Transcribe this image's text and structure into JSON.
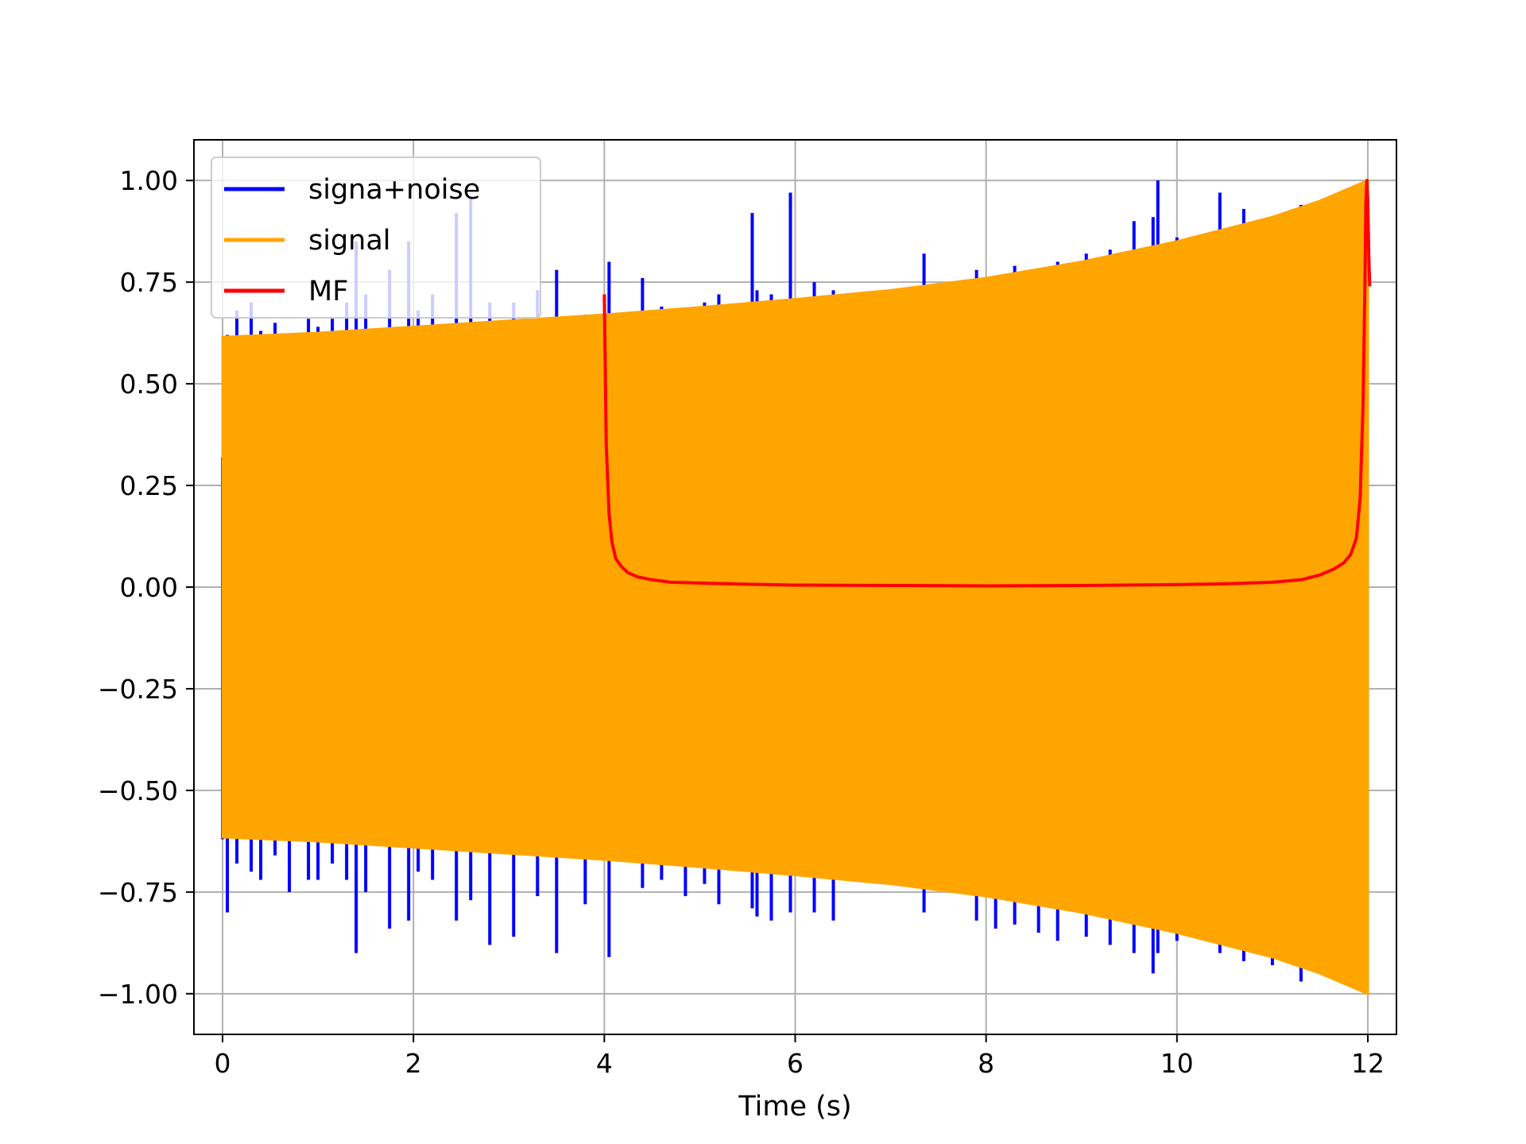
{
  "chart_data": {
    "type": "line",
    "title": "",
    "xlabel": "Time (s)",
    "ylabel": "",
    "xlim": [
      -0.3,
      12.3
    ],
    "ylim": [
      -1.1,
      1.1
    ],
    "grid": true,
    "legend_position": "top-left",
    "x_ticks": [
      0,
      2,
      4,
      6,
      8,
      10,
      12
    ],
    "x_tick_labels": [
      "0",
      "2",
      "4",
      "6",
      "8",
      "10",
      "12"
    ],
    "y_ticks": [
      1.0,
      0.75,
      0.5,
      0.25,
      0.0,
      -0.25,
      -0.5,
      -0.75,
      -1.0
    ],
    "y_tick_labels": [
      "1.00",
      "0.75",
      "0.50",
      "0.25",
      "0.00",
      "−0.25",
      "−0.50",
      "−0.75",
      "−1.00"
    ],
    "series": [
      {
        "name": "signa+noise",
        "color": "#0000ff",
        "type": "spikes",
        "x": [
          0.0,
          0.05,
          0.15,
          0.3,
          0.4,
          0.55,
          0.7,
          0.9,
          1.0,
          1.15,
          1.3,
          1.4,
          1.5,
          1.75,
          1.95,
          2.05,
          2.2,
          2.45,
          2.6,
          2.8,
          3.05,
          3.3,
          3.5,
          3.8,
          4.05,
          4.4,
          4.6,
          4.85,
          5.05,
          5.2,
          5.55,
          5.6,
          5.75,
          5.95,
          6.2,
          6.4,
          7.35,
          7.9,
          8.1,
          8.3,
          8.55,
          8.75,
          9.05,
          9.3,
          9.55,
          9.75,
          9.8,
          10.0,
          10.45,
          10.7,
          11.0,
          11.3,
          11.6,
          11.9
        ],
        "y": [
          0.32,
          0.62,
          0.68,
          0.7,
          0.63,
          0.65,
          0.6,
          0.66,
          0.64,
          0.66,
          0.7,
          0.85,
          0.72,
          0.78,
          0.85,
          0.68,
          0.72,
          0.92,
          0.96,
          0.7,
          0.7,
          0.73,
          0.78,
          0.67,
          0.8,
          0.76,
          0.69,
          0.68,
          0.7,
          0.72,
          0.92,
          0.73,
          0.72,
          0.97,
          0.75,
          0.73,
          0.82,
          0.78,
          0.76,
          0.79,
          0.78,
          0.8,
          0.82,
          0.83,
          0.9,
          0.91,
          1.0,
          0.86,
          0.97,
          0.93,
          0.91,
          0.94,
          0.95,
          0.98
        ],
        "y_low": [
          -0.62,
          -0.8,
          -0.68,
          -0.7,
          -0.72,
          -0.66,
          -0.75,
          -0.72,
          -0.72,
          -0.68,
          -0.72,
          -0.9,
          -0.75,
          -0.84,
          -0.82,
          -0.7,
          -0.72,
          -0.82,
          -0.77,
          -0.88,
          -0.86,
          -0.76,
          -0.9,
          -0.78,
          -0.91,
          -0.74,
          -0.72,
          -0.76,
          -0.73,
          -0.78,
          -0.79,
          -0.81,
          -0.82,
          -0.8,
          -0.8,
          -0.82,
          -0.8,
          -0.82,
          -0.84,
          -0.83,
          -0.85,
          -0.87,
          -0.86,
          -0.88,
          -0.9,
          -0.95,
          -0.9,
          -0.87,
          -0.9,
          -0.92,
          -0.93,
          -0.97,
          -0.95,
          -0.98
        ]
      },
      {
        "name": "signal",
        "color": "#ffa500",
        "type": "envelope",
        "x": [
          0.0,
          1.0,
          2.0,
          3.0,
          4.0,
          5.0,
          6.0,
          7.0,
          8.0,
          9.0,
          10.0,
          11.0,
          11.5,
          12.0
        ],
        "y_upper": [
          0.615,
          0.625,
          0.64,
          0.655,
          0.67,
          0.688,
          0.708,
          0.73,
          0.76,
          0.8,
          0.85,
          0.91,
          0.95,
          1.0
        ],
        "y_lower": [
          -0.615,
          -0.625,
          -0.64,
          -0.655,
          -0.67,
          -0.688,
          -0.708,
          -0.73,
          -0.76,
          -0.8,
          -0.85,
          -0.91,
          -0.95,
          -1.0
        ]
      },
      {
        "name": "MF",
        "color": "#ff0000",
        "type": "line",
        "x": [
          4.0,
          4.02,
          4.05,
          4.08,
          4.12,
          4.18,
          4.25,
          4.35,
          4.5,
          4.7,
          5.0,
          5.5,
          6.0,
          7.0,
          8.0,
          9.0,
          10.0,
          10.5,
          11.0,
          11.3,
          11.5,
          11.65,
          11.75,
          11.82,
          11.88,
          11.92,
          11.95,
          11.97,
          11.98,
          11.99,
          12.0,
          12.01,
          12.02
        ],
        "y": [
          0.72,
          0.35,
          0.18,
          0.11,
          0.07,
          0.05,
          0.035,
          0.025,
          0.018,
          0.012,
          0.01,
          0.007,
          0.005,
          0.004,
          0.003,
          0.004,
          0.006,
          0.008,
          0.012,
          0.018,
          0.03,
          0.045,
          0.06,
          0.08,
          0.12,
          0.22,
          0.45,
          0.75,
          0.95,
          1.0,
          0.95,
          0.82,
          0.74
        ]
      }
    ]
  }
}
